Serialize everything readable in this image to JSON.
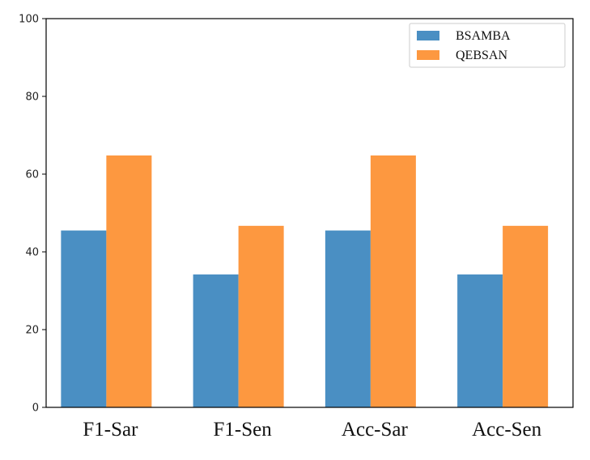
{
  "chart_data": {
    "type": "bar",
    "categories": [
      "F1-Sar",
      "F1-Sen",
      "Acc-Sar",
      "Acc-Sen"
    ],
    "series": [
      {
        "name": "BSAMBA",
        "values": [
          45.5,
          34.2,
          45.5,
          34.2
        ],
        "color": "#4a8fc3"
      },
      {
        "name": "QEBSAN",
        "values": [
          64.8,
          46.7,
          64.8,
          46.7
        ],
        "color": "#fd9840"
      }
    ],
    "xlabel": "",
    "ylabel": "",
    "ylim": [
      0,
      100
    ],
    "yticks": [
      0,
      20,
      40,
      60,
      80,
      100
    ],
    "grid": false,
    "legend_position": "top-right"
  }
}
